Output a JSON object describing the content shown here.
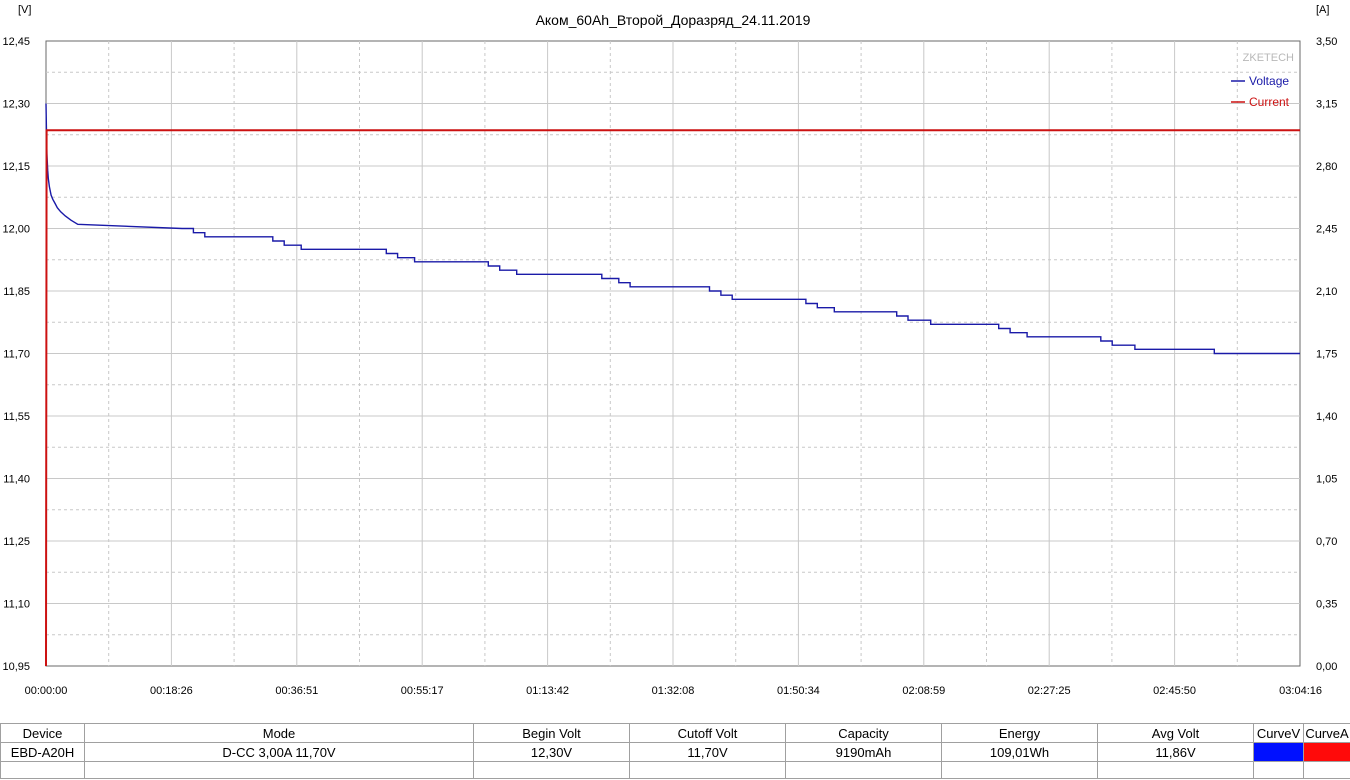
{
  "chart_data": {
    "type": "line",
    "title": "Аком_60Ah_Второй_Доразряд_24.11.2019",
    "y_left_unit": "[V]",
    "y_right_unit": "[A]",
    "watermark": "ZKETECH",
    "y_left_range": [
      10.95,
      12.45
    ],
    "y_right_range": [
      0.0,
      3.5
    ],
    "y_left_ticks": [
      "12,45",
      "12,30",
      "12,15",
      "12,00",
      "11,85",
      "11,70",
      "11,55",
      "11,40",
      "11,25",
      "11,10",
      "10,95"
    ],
    "y_right_ticks": [
      "3,50",
      "3,15",
      "2,80",
      "2,45",
      "2,10",
      "1,75",
      "1,40",
      "1,05",
      "0,70",
      "0,35",
      "0,00"
    ],
    "x_range_seconds": [
      0,
      11056
    ],
    "x_ticks": [
      "00:00:00",
      "00:18:26",
      "00:36:51",
      "00:55:17",
      "01:13:42",
      "01:32:08",
      "01:50:34",
      "02:08:59",
      "02:27:25",
      "02:45:50",
      "03:04:16"
    ],
    "grid": true,
    "legend_position": "top-right",
    "series": [
      {
        "name": "Voltage",
        "axis": "left",
        "color": "#1a1aa8",
        "x": [
          0,
          4,
          8,
          15,
          20,
          30,
          45,
          60,
          80,
          100,
          130,
          170,
          220,
          280,
          1200,
          1300,
          1400,
          2000,
          2100,
          2250,
          3000,
          3100,
          3250,
          3900,
          4000,
          4150,
          4900,
          5050,
          5150,
          5850,
          5950,
          6050,
          6700,
          6800,
          6950,
          7500,
          7600,
          7800,
          8400,
          8500,
          8650,
          9300,
          9400,
          9600,
          10300,
          10400,
          10550,
          11000,
          11056
        ],
        "y": [
          12.3,
          12.23,
          12.18,
          12.14,
          12.12,
          12.1,
          12.08,
          12.07,
          12.06,
          12.05,
          12.04,
          12.03,
          12.02,
          12.01,
          12.0,
          11.99,
          11.98,
          11.97,
          11.96,
          11.95,
          11.94,
          11.93,
          11.92,
          11.91,
          11.9,
          11.89,
          11.88,
          11.87,
          11.86,
          11.85,
          11.84,
          11.83,
          11.82,
          11.81,
          11.8,
          11.79,
          11.78,
          11.77,
          11.76,
          11.75,
          11.74,
          11.73,
          11.72,
          11.71,
          11.7,
          11.7,
          11.7,
          11.7,
          11.7
        ]
      },
      {
        "name": "Current",
        "axis": "right",
        "color": "#cc1111",
        "x": [
          0,
          5,
          11056
        ],
        "y": [
          0.0,
          3.0,
          3.0
        ]
      }
    ]
  },
  "table": {
    "headers": [
      "Device",
      "Mode",
      "Begin Volt",
      "Cutoff Volt",
      "Capacity",
      "Energy",
      "Avg Volt",
      "CurveV",
      "CurveA"
    ],
    "row": [
      "EBD-A20H",
      "D-CC  3,00A  11,70V",
      "12,30V",
      "11,70V",
      "9190mAh",
      "109,01Wh",
      "11,86V"
    ],
    "curve_colors": {
      "voltage": "#0010ff",
      "current": "#ff0a0a"
    }
  }
}
